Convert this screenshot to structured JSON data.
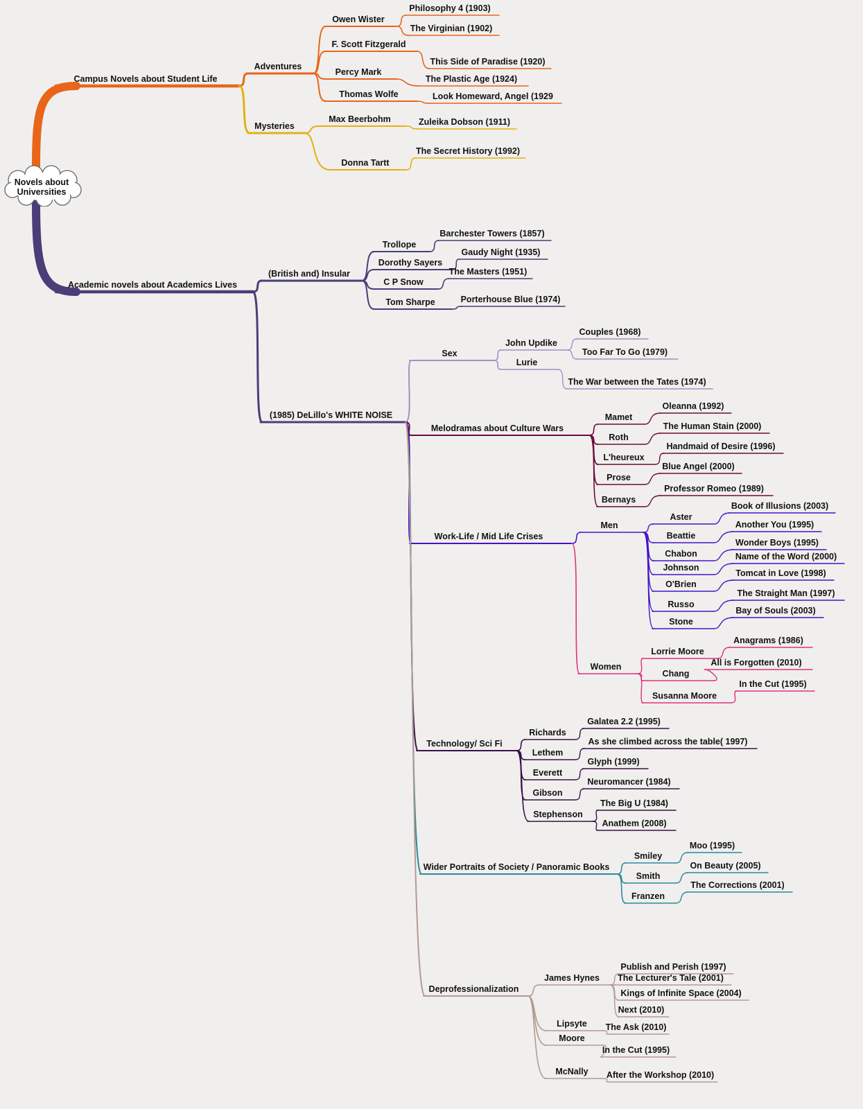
{
  "root": {
    "label_line1": "Novels about",
    "label_line2": "Universities",
    "children": [
      {
        "label": "Campus Novels about Student Life",
        "color": "#e8651a",
        "children": [
          {
            "label": "Adventures",
            "color": "#e8651a",
            "children": [
              {
                "label": "Owen Wister",
                "children": [
                  {
                    "label": "Philosophy 4 (1903)"
                  },
                  {
                    "label": "The Virginian (1902)"
                  }
                ]
              },
              {
                "label": "F. Scott Fitzgerald",
                "children": [
                  {
                    "label": "This Side of Paradise (1920)"
                  }
                ]
              },
              {
                "label": "Percy Mark",
                "children": [
                  {
                    "label": "The Plastic Age (1924)"
                  }
                ]
              },
              {
                "label": "Thomas Wolfe",
                "children": [
                  {
                    "label": "Look Homeward, Angel (1929"
                  }
                ]
              }
            ]
          },
          {
            "label": "Mysteries",
            "color": "#e2b20e",
            "children": [
              {
                "label": "Max Beerbohm",
                "children": [
                  {
                    "label": "Zuleika Dobson (1911)"
                  }
                ]
              },
              {
                "label": "Donna Tartt",
                "children": [
                  {
                    "label": "The Secret History (1992)"
                  }
                ]
              }
            ]
          }
        ]
      },
      {
        "label": "Academic novels about Academics Lives",
        "color": "#4b3d78",
        "children": [
          {
            "label": "(British and) Insular",
            "children": [
              {
                "label": "Trollope",
                "children": [
                  {
                    "label": "Barchester Towers (1857)"
                  }
                ]
              },
              {
                "label": "Dorothy Sayers",
                "children": [
                  {
                    "label": "Gaudy Night (1935)"
                  }
                ]
              },
              {
                "label": "C P Snow",
                "children": [
                  {
                    "label": "The Masters (1951)"
                  }
                ]
              },
              {
                "label": "Tom Sharpe",
                "children": [
                  {
                    "label": "Porterhouse Blue (1974)"
                  }
                ]
              }
            ]
          },
          {
            "label": "(1985) DeLillo's WHITE NOISE",
            "children": [
              {
                "label": "Sex",
                "color": "#a78cc6",
                "children": [
                  {
                    "label": "John Updike",
                    "children": [
                      {
                        "label": "Couples (1968)"
                      },
                      {
                        "label": "Too Far To Go (1979)"
                      }
                    ]
                  },
                  {
                    "label": "Lurie",
                    "children": [
                      {
                        "label": "The War between the Tates (1974)"
                      }
                    ]
                  }
                ]
              },
              {
                "label": "Melodramas about Culture Wars",
                "color": "#6c0c3c",
                "children": [
                  {
                    "label": "Mamet",
                    "children": [
                      {
                        "label": "Oleanna (1992)"
                      }
                    ]
                  },
                  {
                    "label": "Roth",
                    "children": [
                      {
                        "label": "The Human Stain (2000)"
                      }
                    ]
                  },
                  {
                    "label": "L'heureux",
                    "children": [
                      {
                        "label": "Handmaid of Desire (1996)"
                      }
                    ]
                  },
                  {
                    "label": "Prose",
                    "children": [
                      {
                        "label": "Blue Angel (2000)"
                      }
                    ]
                  },
                  {
                    "label": "Bernays",
                    "children": [
                      {
                        "label": "Professor Romeo (1989)"
                      }
                    ]
                  }
                ]
              },
              {
                "label": "Work-Life / Mid Life Crises",
                "color": "#4414c8",
                "children": [
                  {
                    "label": "Men",
                    "children": [
                      {
                        "label": "Aster",
                        "children": [
                          {
                            "label": "Book of Illusions (2003)"
                          }
                        ]
                      },
                      {
                        "label": "Beattie",
                        "children": [
                          {
                            "label": "Another You (1995)"
                          }
                        ]
                      },
                      {
                        "label": "Chabon",
                        "children": [
                          {
                            "label": "Wonder Boys (1995)"
                          }
                        ]
                      },
                      {
                        "label": "Johnson",
                        "children": [
                          {
                            "label": "Name of the Word (2000)"
                          }
                        ]
                      },
                      {
                        "label": "O'Brien",
                        "children": [
                          {
                            "label": "Tomcat in Love (1998)"
                          }
                        ]
                      },
                      {
                        "label": "Russo",
                        "children": [
                          {
                            "label": "The Straight Man (1997)"
                          }
                        ]
                      },
                      {
                        "label": "Stone",
                        "children": [
                          {
                            "label": "Bay of Souls (2003)"
                          }
                        ]
                      }
                    ]
                  },
                  {
                    "label": "Women",
                    "color": "#e0307e",
                    "children": [
                      {
                        "label": "Lorrie Moore",
                        "children": [
                          {
                            "label": "Anagrams (1986)"
                          }
                        ]
                      },
                      {
                        "label": "Chang",
                        "children": [
                          {
                            "label": "All is Forgotten (2010)"
                          }
                        ]
                      },
                      {
                        "label": "Susanna Moore",
                        "children": [
                          {
                            "label": "In the Cut (1995)"
                          }
                        ]
                      }
                    ]
                  }
                ]
              },
              {
                "label": "Technology/ Sci Fi",
                "color": "#3a1048",
                "children": [
                  {
                    "label": "Richards",
                    "children": [
                      {
                        "label": "Galatea 2.2 (1995)"
                      }
                    ]
                  },
                  {
                    "label": "Lethem",
                    "children": [
                      {
                        "label": "As she climbed across the table( 1997)"
                      }
                    ]
                  },
                  {
                    "label": "Everett",
                    "children": [
                      {
                        "label": "Glyph (1999)"
                      }
                    ]
                  },
                  {
                    "label": "Gibson",
                    "children": [
                      {
                        "label": "Neuromancer (1984)"
                      }
                    ]
                  },
                  {
                    "label": "Stephenson",
                    "children": [
                      {
                        "label": "The Big U (1984)"
                      },
                      {
                        "label": "Anathem (2008)"
                      }
                    ]
                  }
                ]
              },
              {
                "label": "Wider Portraits of Society / Panoramic Books",
                "color": "#2a8a9c",
                "children": [
                  {
                    "label": "Smiley",
                    "children": [
                      {
                        "label": "Moo (1995)"
                      }
                    ]
                  },
                  {
                    "label": "Smith",
                    "children": [
                      {
                        "label": "On Beauty (2005)"
                      }
                    ]
                  },
                  {
                    "label": "Franzen",
                    "children": [
                      {
                        "label": "The Corrections (2001)"
                      }
                    ]
                  }
                ]
              },
              {
                "label": "Deprofessionalization",
                "color": "#b49a92",
                "children": [
                  {
                    "label": "James Hynes",
                    "children": [
                      {
                        "label": "Publish and Perish (1997)"
                      },
                      {
                        "label": "The Lecturer's Tale (2001)"
                      },
                      {
                        "label": "Kings of Infinite Space (2004)"
                      },
                      {
                        "label": "Next (2010)"
                      }
                    ]
                  },
                  {
                    "label": "Lipsyte",
                    "children": [
                      {
                        "label": "The Ask (2010)"
                      }
                    ]
                  },
                  {
                    "label": "Moore",
                    "children": [
                      {
                        "label": "In the Cut (1995)"
                      }
                    ]
                  },
                  {
                    "label": "McNally",
                    "children": [
                      {
                        "label": "After the Workshop (2010)"
                      }
                    ]
                  }
                ]
              }
            ]
          }
        ]
      }
    ]
  }
}
